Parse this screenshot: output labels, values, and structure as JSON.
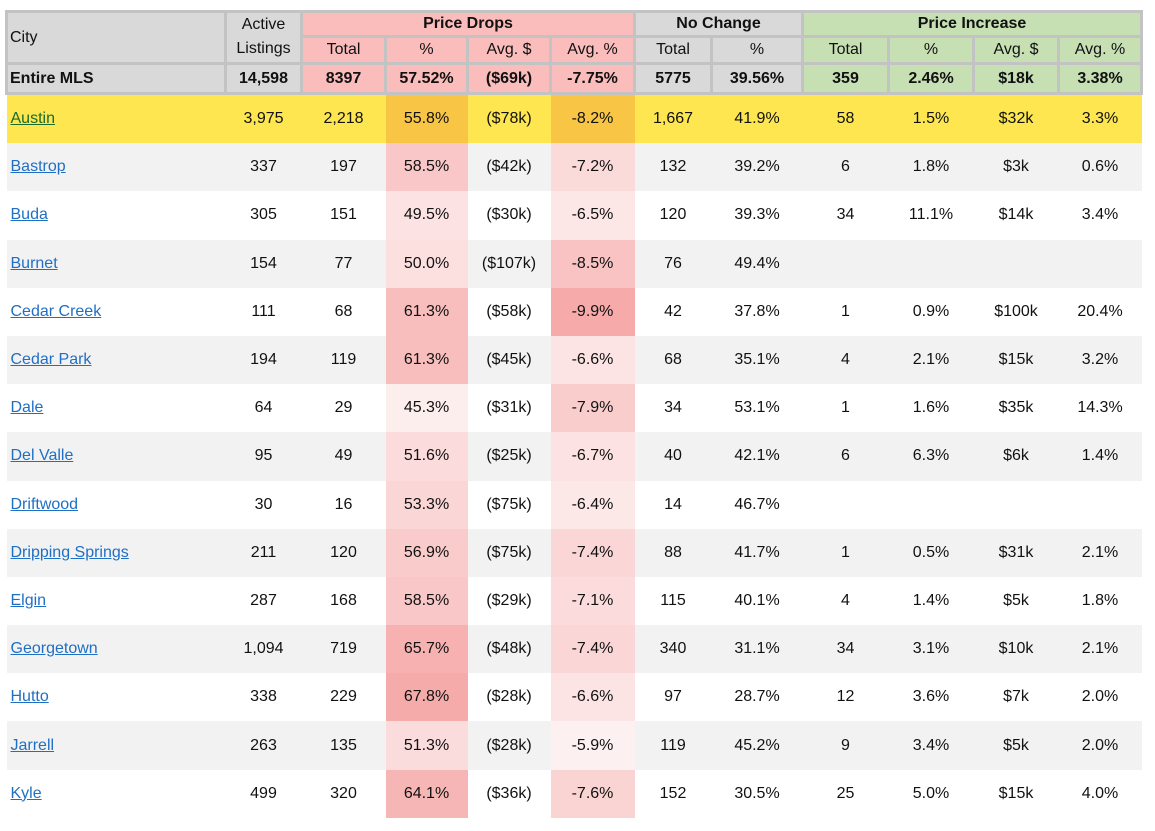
{
  "header": {
    "city": "City",
    "active": "Active",
    "listings": "Listings",
    "price_drops": "Price Drops",
    "no_change": "No Change",
    "price_increase": "Price Increase",
    "sub": {
      "total": "Total",
      "pct": "%",
      "avg_dollar": "Avg. $",
      "avg_pct": "Avg. %"
    }
  },
  "entire_mls": {
    "city": "Entire MLS",
    "active": "14,598",
    "pd_total": "8397",
    "pd_pct": "57.52%",
    "pd_avg_dollar": "($69k)",
    "pd_avg_pct": "-7.75%",
    "nc_total": "5775",
    "nc_pct": "39.56%",
    "pi_total": "359",
    "pi_pct": "2.46%",
    "pi_avg_dollar": "$18k",
    "pi_avg_pct": "3.38%"
  },
  "colors": {
    "highlight": "#fde650",
    "highlight_cell": "#f8c545",
    "heat": "#f8a0a0"
  },
  "rows": [
    [
      "Austin",
      "3,975",
      "2,218",
      "55.8%",
      "($78k)",
      "-8.2%",
      "1,667",
      "41.9%",
      "58",
      "1.5%",
      "$32k",
      "3.3%"
    ],
    [
      "Bastrop",
      "337",
      "197",
      "58.5%",
      "($42k)",
      "-7.2%",
      "132",
      "39.2%",
      "6",
      "1.8%",
      "$3k",
      "0.6%"
    ],
    [
      "Buda",
      "305",
      "151",
      "49.5%",
      "($30k)",
      "-6.5%",
      "120",
      "39.3%",
      "34",
      "11.1%",
      "$14k",
      "3.4%"
    ],
    [
      "Burnet",
      "154",
      "77",
      "50.0%",
      "($107k)",
      "-8.5%",
      "76",
      "49.4%",
      "",
      "",
      "",
      ""
    ],
    [
      "Cedar Creek",
      "111",
      "68",
      "61.3%",
      "($58k)",
      "-9.9%",
      "42",
      "37.8%",
      "1",
      "0.9%",
      "$100k",
      "20.4%"
    ],
    [
      "Cedar Park",
      "194",
      "119",
      "61.3%",
      "($45k)",
      "-6.6%",
      "68",
      "35.1%",
      "4",
      "2.1%",
      "$15k",
      "3.2%"
    ],
    [
      "Dale",
      "64",
      "29",
      "45.3%",
      "($31k)",
      "-7.9%",
      "34",
      "53.1%",
      "1",
      "1.6%",
      "$35k",
      "14.3%"
    ],
    [
      "Del Valle",
      "95",
      "49",
      "51.6%",
      "($25k)",
      "-6.7%",
      "40",
      "42.1%",
      "6",
      "6.3%",
      "$6k",
      "1.4%"
    ],
    [
      "Driftwood",
      "30",
      "16",
      "53.3%",
      "($75k)",
      "-6.4%",
      "14",
      "46.7%",
      "",
      "",
      "",
      ""
    ],
    [
      "Dripping Springs",
      "211",
      "120",
      "56.9%",
      "($75k)",
      "-7.4%",
      "88",
      "41.7%",
      "1",
      "0.5%",
      "$31k",
      "2.1%"
    ],
    [
      "Elgin",
      "287",
      "168",
      "58.5%",
      "($29k)",
      "-7.1%",
      "115",
      "40.1%",
      "4",
      "1.4%",
      "$5k",
      "1.8%"
    ],
    [
      "Georgetown",
      "1,094",
      "719",
      "65.7%",
      "($48k)",
      "-7.4%",
      "340",
      "31.1%",
      "34",
      "3.1%",
      "$10k",
      "2.1%"
    ],
    [
      "Hutto",
      "338",
      "229",
      "67.8%",
      "($28k)",
      "-6.6%",
      "97",
      "28.7%",
      "12",
      "3.6%",
      "$7k",
      "2.0%"
    ],
    [
      "Jarrell",
      "263",
      "135",
      "51.3%",
      "($28k)",
      "-5.9%",
      "119",
      "45.2%",
      "9",
      "3.4%",
      "$5k",
      "2.0%"
    ],
    [
      "Kyle",
      "499",
      "320",
      "64.1%",
      "($36k)",
      "-7.6%",
      "152",
      "30.5%",
      "25",
      "5.0%",
      "$15k",
      "4.0%"
    ]
  ]
}
